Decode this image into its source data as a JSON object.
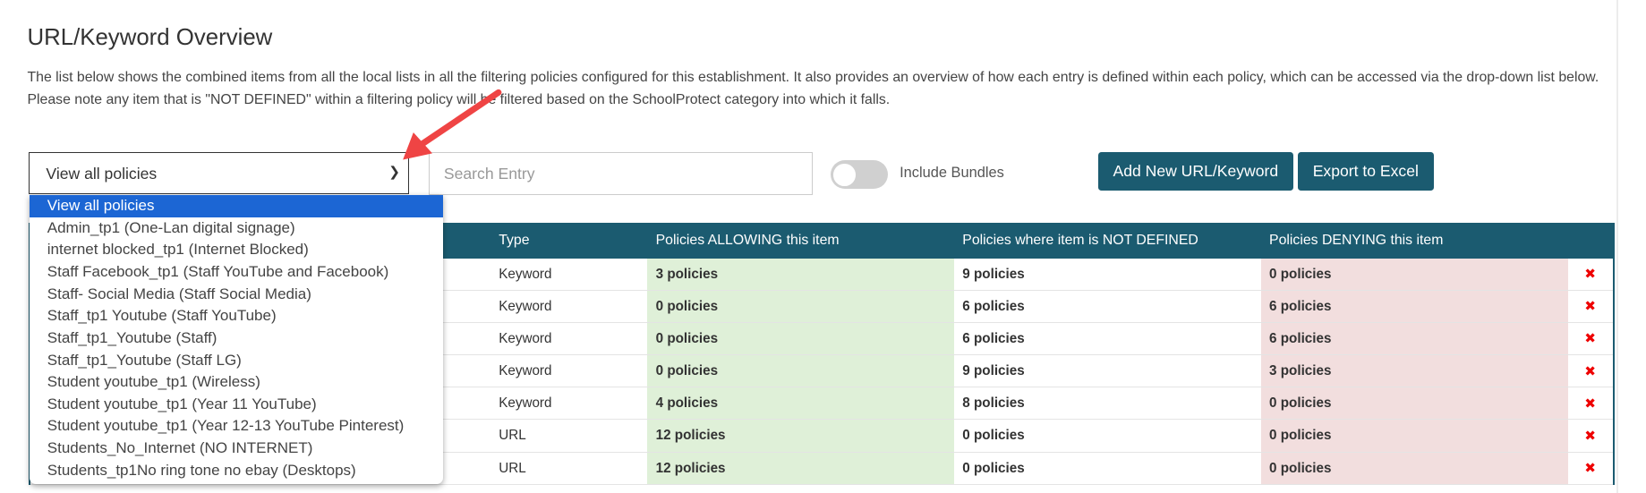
{
  "page": {
    "title": "URL/Keyword Overview",
    "description": "The list below shows the combined items from all the local lists in all the filtering policies configured for this establishment. It also provides an overview of how each entry is defined within each policy, which can be accessed via the drop-down list below. Please note any item that is \"NOT DEFINED\" within a filtering policy will be filtered based on the SchoolProtect category into which it falls."
  },
  "controls": {
    "policy_select_value": "View all policies",
    "search_placeholder": "Search Entry",
    "include_bundles_label": "Include Bundles",
    "include_bundles_on": false,
    "add_button": "Add New URL/Keyword",
    "export_button": "Export to Excel"
  },
  "dropdown": {
    "options": [
      "View all policies",
      "Admin_tp1 (One-Lan digital signage)",
      "internet blocked_tp1 (Internet Blocked)",
      "Staff Facebook_tp1 (Staff YouTube and Facebook)",
      "Staff- Social Media (Staff Social Media)",
      "Staff_tp1 Youtube (Staff YouTube)",
      "Staff_tp1_Youtube (Staff)",
      "Staff_tp1_Youtube (Staff LG)",
      "Student youtube_tp1 (Wireless)",
      "Student youtube_tp1 (Year 11 YouTube)",
      "Student youtube_tp1 (Year 12-13 YouTube Pinterest)",
      "Students_No_Internet (NO INTERNET)",
      "Students_tp1No ring tone no ebay (Desktops)"
    ],
    "selected": 0
  },
  "table": {
    "headers": [
      "",
      "Type",
      "Policies ALLOWING this item",
      "Policies where item is NOT DEFINED",
      "Policies DENYING this item",
      ""
    ],
    "rows": [
      {
        "type": "Keyword",
        "allow": "3 policies",
        "undef": "9 policies",
        "deny": "0 policies"
      },
      {
        "type": "Keyword",
        "allow": "0 policies",
        "undef": "6 policies",
        "deny": "6 policies"
      },
      {
        "type": "Keyword",
        "allow": "0 policies",
        "undef": "6 policies",
        "deny": "6 policies"
      },
      {
        "type": "Keyword",
        "allow": "0 policies",
        "undef": "9 policies",
        "deny": "3 policies"
      },
      {
        "type": "Keyword",
        "allow": "4 policies",
        "undef": "8 policies",
        "deny": "0 policies"
      },
      {
        "type": "URL",
        "allow": "12 policies",
        "undef": "0 policies",
        "deny": "0 policies"
      },
      {
        "type": "URL",
        "allow": "12 policies",
        "undef": "0 policies",
        "deny": "0 policies"
      }
    ],
    "delete_icon": "✖"
  },
  "colors": {
    "header": "#1b5b70",
    "allow": "#dff0d8",
    "deny": "#f2dede",
    "selected_option": "#1c66d4",
    "arrow": "#ef4444"
  }
}
